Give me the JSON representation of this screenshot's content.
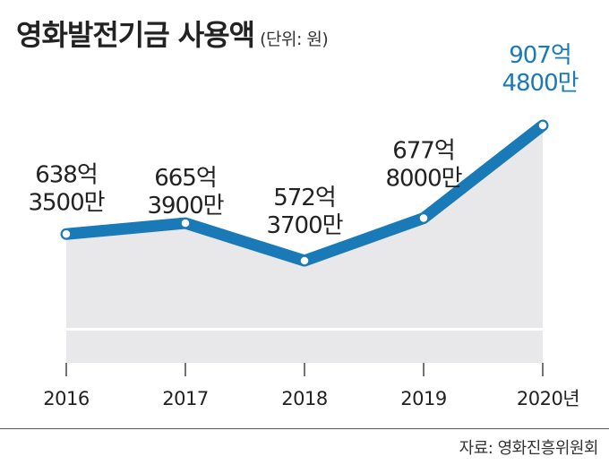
{
  "title": "영화발전기금 사용액",
  "unit_note": "(단위: 원)",
  "source": "자료: 영화진흥위원회",
  "colors": {
    "line": "#1a7ab8",
    "area": "#e8e8ea",
    "highlight_text": "#1a7ab8"
  },
  "chart_data": {
    "type": "line",
    "title": "영화발전기금 사용액",
    "x": [
      "2016",
      "2017",
      "2018",
      "2019",
      "2020년"
    ],
    "series": [
      {
        "values": [
          63835000000,
          66539000000,
          57237000000,
          67780000000,
          90748000000
        ]
      }
    ],
    "data_labels": [
      {
        "line1": "638억",
        "line2": "3500만"
      },
      {
        "line1": "665억",
        "line2": "3900만"
      },
      {
        "line1": "572억",
        "line2": "3700만"
      },
      {
        "line1": "677억",
        "line2": "8000만"
      },
      {
        "line1": "907억",
        "line2": "4800만"
      }
    ],
    "highlight_index": 4,
    "grid": false,
    "legend": "none"
  }
}
